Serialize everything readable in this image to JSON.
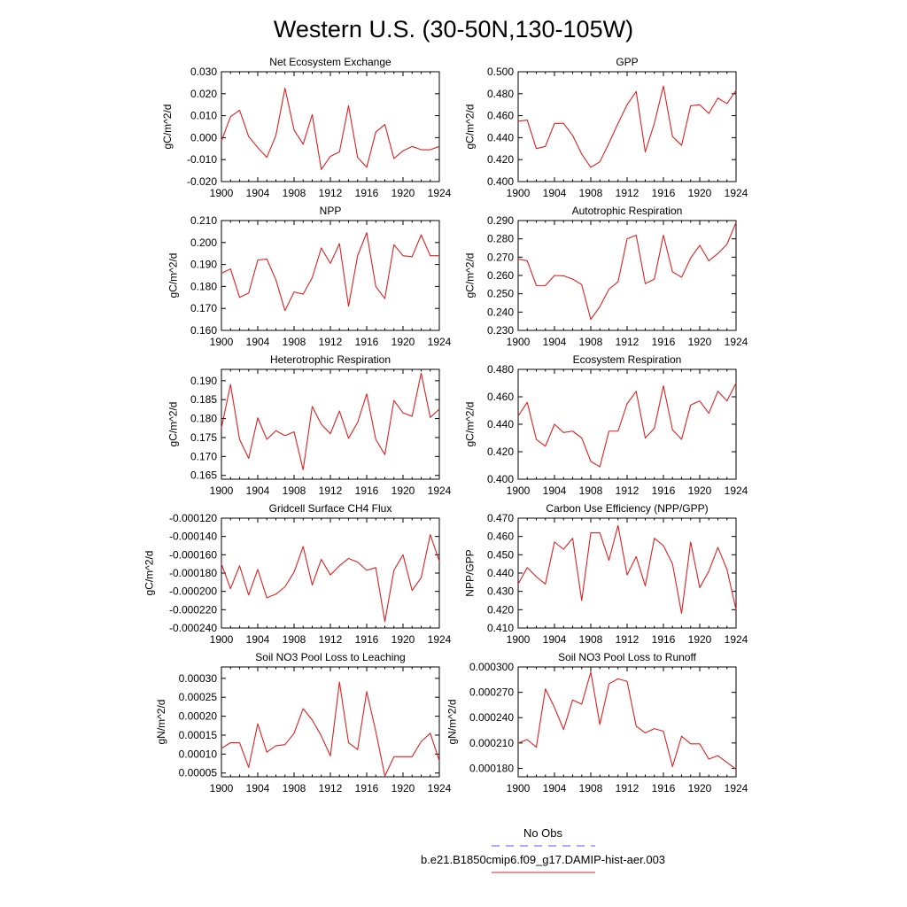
{
  "page": {
    "title": "Western U.S. (30-50N,130-105W)"
  },
  "legend": {
    "entries": [
      {
        "label": "No Obs",
        "color": "#5a5af0",
        "dashed": true
      },
      {
        "label": "b.e21.B1850cmip6.f09_g17.DAMIP-hist-aer.003",
        "color": "#e02020",
        "dashed": false
      }
    ]
  },
  "chart_data": [
    {
      "type": "line",
      "title": "Net Ecosystem Exchange",
      "ylabel": "gC/m^2/d",
      "xlim": [
        1900,
        1924
      ],
      "ylim": [
        -0.02,
        0.03
      ],
      "xticks": [
        "1900",
        "1904",
        "1908",
        "1912",
        "1916",
        "1920",
        "1924"
      ],
      "yticks": [
        "0.030",
        "0.020",
        "0.010",
        "0.000",
        "-0.010",
        "-0.020"
      ],
      "series": [
        {
          "color": "#e02020",
          "x": [
            1900,
            1901,
            1902,
            1903,
            1904,
            1905,
            1906,
            1907,
            1908,
            1909,
            1910,
            1911,
            1912,
            1913,
            1914,
            1915,
            1916,
            1917,
            1918,
            1919,
            1920,
            1921,
            1922,
            1923,
            1924
          ],
          "values": [
            -0.0015,
            0.0095,
            0.0125,
            0.0005,
            -0.0045,
            -0.009,
            0.001,
            0.0225,
            0.0035,
            -0.003,
            0.0105,
            -0.0145,
            -0.0085,
            -0.0065,
            0.0145,
            -0.009,
            -0.0135,
            0.0025,
            0.006,
            -0.0095,
            -0.006,
            -0.004,
            -0.0055,
            -0.0055,
            -0.004
          ]
        }
      ]
    },
    {
      "type": "line",
      "title": "GPP",
      "ylabel": "gC/m^2/d",
      "xlim": [
        1900,
        1924
      ],
      "ylim": [
        0.4,
        0.5
      ],
      "xticks": [
        "1900",
        "1904",
        "1908",
        "1912",
        "1916",
        "1920",
        "1924"
      ],
      "yticks": [
        "0.500",
        "0.480",
        "0.460",
        "0.440",
        "0.420",
        "0.400"
      ],
      "series": [
        {
          "color": "#e02020",
          "x": [
            1900,
            1901,
            1902,
            1903,
            1904,
            1905,
            1906,
            1907,
            1908,
            1909,
            1910,
            1911,
            1912,
            1913,
            1914,
            1915,
            1916,
            1917,
            1918,
            1919,
            1920,
            1921,
            1922,
            1923,
            1924
          ],
          "values": [
            0.455,
            0.456,
            0.43,
            0.432,
            0.453,
            0.453,
            0.442,
            0.425,
            0.413,
            0.418,
            0.435,
            0.453,
            0.47,
            0.482,
            0.427,
            0.453,
            0.487,
            0.441,
            0.433,
            0.469,
            0.47,
            0.462,
            0.476,
            0.471,
            0.483
          ]
        }
      ]
    },
    {
      "type": "line",
      "title": "NPP",
      "ylabel": "gC/m^2/d",
      "xlim": [
        1900,
        1924
      ],
      "ylim": [
        0.16,
        0.21
      ],
      "xticks": [
        "1900",
        "1904",
        "1908",
        "1912",
        "1916",
        "1920",
        "1924"
      ],
      "yticks": [
        "0.210",
        "0.200",
        "0.190",
        "0.180",
        "0.170",
        "0.160"
      ],
      "series": [
        {
          "color": "#e02020",
          "x": [
            1900,
            1901,
            1902,
            1903,
            1904,
            1905,
            1906,
            1907,
            1908,
            1909,
            1910,
            1911,
            1912,
            1913,
            1914,
            1915,
            1916,
            1917,
            1918,
            1919,
            1920,
            1921,
            1922,
            1923,
            1924
          ],
          "values": [
            0.186,
            0.188,
            0.175,
            0.177,
            0.192,
            0.1925,
            0.183,
            0.169,
            0.1775,
            0.1765,
            0.184,
            0.1975,
            0.1905,
            0.1995,
            0.171,
            0.194,
            0.2045,
            0.18,
            0.1745,
            0.199,
            0.194,
            0.1935,
            0.2035,
            0.194,
            0.194
          ]
        }
      ]
    },
    {
      "type": "line",
      "title": "Autotrophic Respiration",
      "ylabel": "gC/m^2/d",
      "xlim": [
        1900,
        1924
      ],
      "ylim": [
        0.23,
        0.29
      ],
      "xticks": [
        "1900",
        "1904",
        "1908",
        "1912",
        "1916",
        "1920",
        "1924"
      ],
      "yticks": [
        "0.290",
        "0.280",
        "0.270",
        "0.260",
        "0.250",
        "0.240",
        "0.230"
      ],
      "series": [
        {
          "color": "#e02020",
          "x": [
            1900,
            1901,
            1902,
            1903,
            1904,
            1905,
            1906,
            1907,
            1908,
            1909,
            1910,
            1911,
            1912,
            1913,
            1914,
            1915,
            1916,
            1917,
            1918,
            1919,
            1920,
            1921,
            1922,
            1923,
            1924
          ],
          "values": [
            0.269,
            0.268,
            0.2545,
            0.2545,
            0.26,
            0.2598,
            0.258,
            0.255,
            0.236,
            0.243,
            0.2525,
            0.2565,
            0.28,
            0.282,
            0.2555,
            0.258,
            0.282,
            0.262,
            0.259,
            0.2695,
            0.2765,
            0.268,
            0.272,
            0.277,
            0.289
          ]
        }
      ]
    },
    {
      "type": "line",
      "title": "Heterotrophic Respiration",
      "ylabel": "gC/m^2/d",
      "xlim": [
        1900,
        1924
      ],
      "ylim": [
        0.164,
        0.193
      ],
      "xticks": [
        "1900",
        "1904",
        "1908",
        "1912",
        "1916",
        "1920",
        "1924"
      ],
      "yticks": [
        "0.190",
        "0.185",
        "0.180",
        "0.175",
        "0.170",
        "0.165"
      ],
      "series": [
        {
          "color": "#e02020",
          "x": [
            1900,
            1901,
            1902,
            1903,
            1904,
            1905,
            1906,
            1907,
            1908,
            1909,
            1910,
            1911,
            1912,
            1913,
            1914,
            1915,
            1916,
            1917,
            1918,
            1919,
            1920,
            1921,
            1922,
            1923,
            1924
          ],
          "values": [
            0.1775,
            0.189,
            0.1745,
            0.1695,
            0.1802,
            0.1745,
            0.1768,
            0.1755,
            0.1765,
            0.1665,
            0.1832,
            0.1785,
            0.176,
            0.182,
            0.1748,
            0.179,
            0.1865,
            0.1745,
            0.1705,
            0.1848,
            0.1815,
            0.1806,
            0.192,
            0.1803,
            0.1825
          ]
        }
      ]
    },
    {
      "type": "line",
      "title": "Ecosystem Respiration",
      "ylabel": "gC/m^2/d",
      "xlim": [
        1900,
        1924
      ],
      "ylim": [
        0.4,
        0.48
      ],
      "xticks": [
        "1900",
        "1904",
        "1908",
        "1912",
        "1916",
        "1920",
        "1924"
      ],
      "yticks": [
        "0.480",
        "0.460",
        "0.440",
        "0.420",
        "0.400"
      ],
      "series": [
        {
          "color": "#e02020",
          "x": [
            1900,
            1901,
            1902,
            1903,
            1904,
            1905,
            1906,
            1907,
            1908,
            1909,
            1910,
            1911,
            1912,
            1913,
            1914,
            1915,
            1916,
            1917,
            1918,
            1919,
            1920,
            1921,
            1922,
            1923,
            1924
          ],
          "values": [
            0.446,
            0.456,
            0.429,
            0.424,
            0.44,
            0.434,
            0.435,
            0.43,
            0.413,
            0.409,
            0.435,
            0.435,
            0.455,
            0.464,
            0.43,
            0.437,
            0.468,
            0.436,
            0.429,
            0.454,
            0.457,
            0.448,
            0.464,
            0.457,
            0.47
          ]
        }
      ]
    },
    {
      "type": "line",
      "title": "Gridcell Surface CH4 Flux",
      "ylabel": "gC/m^2/d",
      "xlim": [
        1900,
        1924
      ],
      "ylim": [
        -0.00024,
        -0.00012
      ],
      "xticks": [
        "1900",
        "1904",
        "1908",
        "1912",
        "1916",
        "1920",
        "1924"
      ],
      "yticks": [
        "-0.000120",
        "-0.000140",
        "-0.000160",
        "-0.000180",
        "-0.000200",
        "-0.000220",
        "-0.000240"
      ],
      "series": [
        {
          "color": "#e02020",
          "x": [
            1900,
            1901,
            1902,
            1903,
            1904,
            1905,
            1906,
            1907,
            1908,
            1909,
            1910,
            1911,
            1912,
            1913,
            1914,
            1915,
            1916,
            1917,
            1918,
            1919,
            1920,
            1921,
            1922,
            1923,
            1924
          ],
          "values": [
            -0.00017,
            -0.000197,
            -0.000172,
            -0.000204,
            -0.000176,
            -0.000207,
            -0.000203,
            -0.000195,
            -0.000179,
            -0.000151,
            -0.000193,
            -0.000165,
            -0.000182,
            -0.000172,
            -0.000164,
            -0.000168,
            -0.000177,
            -0.000174,
            -0.000233,
            -0.000177,
            -0.00016,
            -0.000199,
            -0.000185,
            -0.000138,
            -0.000167
          ]
        }
      ]
    },
    {
      "type": "line",
      "title": "Carbon Use Efficiency (NPP/GPP)",
      "ylabel": "NPP/GPP",
      "xlim": [
        1900,
        1924
      ],
      "ylim": [
        0.41,
        0.47
      ],
      "xticks": [
        "1900",
        "1904",
        "1908",
        "1912",
        "1916",
        "1920",
        "1924"
      ],
      "yticks": [
        "0.470",
        "0.460",
        "0.450",
        "0.440",
        "0.430",
        "0.420",
        "0.410"
      ],
      "series": [
        {
          "color": "#e02020",
          "x": [
            1900,
            1901,
            1902,
            1903,
            1904,
            1905,
            1906,
            1907,
            1908,
            1909,
            1910,
            1911,
            1912,
            1913,
            1914,
            1915,
            1916,
            1917,
            1918,
            1919,
            1920,
            1921,
            1922,
            1923,
            1924
          ],
          "values": [
            0.434,
            0.443,
            0.438,
            0.434,
            0.457,
            0.453,
            0.459,
            0.425,
            0.462,
            0.462,
            0.447,
            0.466,
            0.439,
            0.449,
            0.433,
            0.459,
            0.455,
            0.445,
            0.418,
            0.457,
            0.432,
            0.441,
            0.454,
            0.442,
            0.42
          ]
        }
      ]
    },
    {
      "type": "line",
      "title": "Soil NO3 Pool Loss to Leaching",
      "ylabel": "gN/m^2/d",
      "xlim": [
        1900,
        1924
      ],
      "ylim": [
        4e-05,
        0.00033
      ],
      "xticks": [
        "1900",
        "1904",
        "1908",
        "1912",
        "1916",
        "1920",
        "1924"
      ],
      "yticks": [
        "0.00030",
        "0.00025",
        "0.00020",
        "0.00015",
        "0.00010",
        "0.00005"
      ],
      "series": [
        {
          "color": "#e02020",
          "x": [
            1900,
            1901,
            1902,
            1903,
            1904,
            1905,
            1906,
            1907,
            1908,
            1909,
            1910,
            1911,
            1912,
            1913,
            1914,
            1915,
            1916,
            1917,
            1918,
            1919,
            1920,
            1921,
            1922,
            1923,
            1924
          ],
          "values": [
            0.000115,
            0.00013,
            0.00013,
            6.5e-05,
            0.00018,
            0.000105,
            0.000122,
            0.000125,
            0.000155,
            0.00022,
            0.00019,
            0.000148,
            9.5e-05,
            0.00029,
            0.00013,
            0.000112,
            0.000265,
            0.00016,
            4.2e-05,
            9.3e-05,
            9.3e-05,
            9.3e-05,
            0.000133,
            0.000155,
            8.2e-05
          ]
        }
      ]
    },
    {
      "type": "line",
      "title": "Soil NO3 Pool Loss to Runoff",
      "ylabel": "gN/m^2/d",
      "xlim": [
        1900,
        1924
      ],
      "ylim": [
        0.00017,
        0.0003
      ],
      "xticks": [
        "1900",
        "1904",
        "1908",
        "1912",
        "1916",
        "1920",
        "1924"
      ],
      "yticks": [
        "0.000300",
        "0.000270",
        "0.000240",
        "0.000210",
        "0.000180"
      ],
      "series": [
        {
          "color": "#e02020",
          "x": [
            1900,
            1901,
            1902,
            1903,
            1904,
            1905,
            1906,
            1907,
            1908,
            1909,
            1910,
            1911,
            1912,
            1913,
            1914,
            1915,
            1916,
            1917,
            1918,
            1919,
            1920,
            1921,
            1922,
            1923,
            1924
          ],
          "values": [
            0.00021,
            0.000214,
            0.000205,
            0.000274,
            0.000252,
            0.000226,
            0.000261,
            0.000256,
            0.000294,
            0.000232,
            0.00028,
            0.000286,
            0.000283,
            0.00023,
            0.000222,
            0.000227,
            0.000224,
            0.000182,
            0.000218,
            0.000209,
            0.000209,
            0.000191,
            0.000195,
            0.000187,
            0.000179
          ]
        }
      ]
    }
  ]
}
